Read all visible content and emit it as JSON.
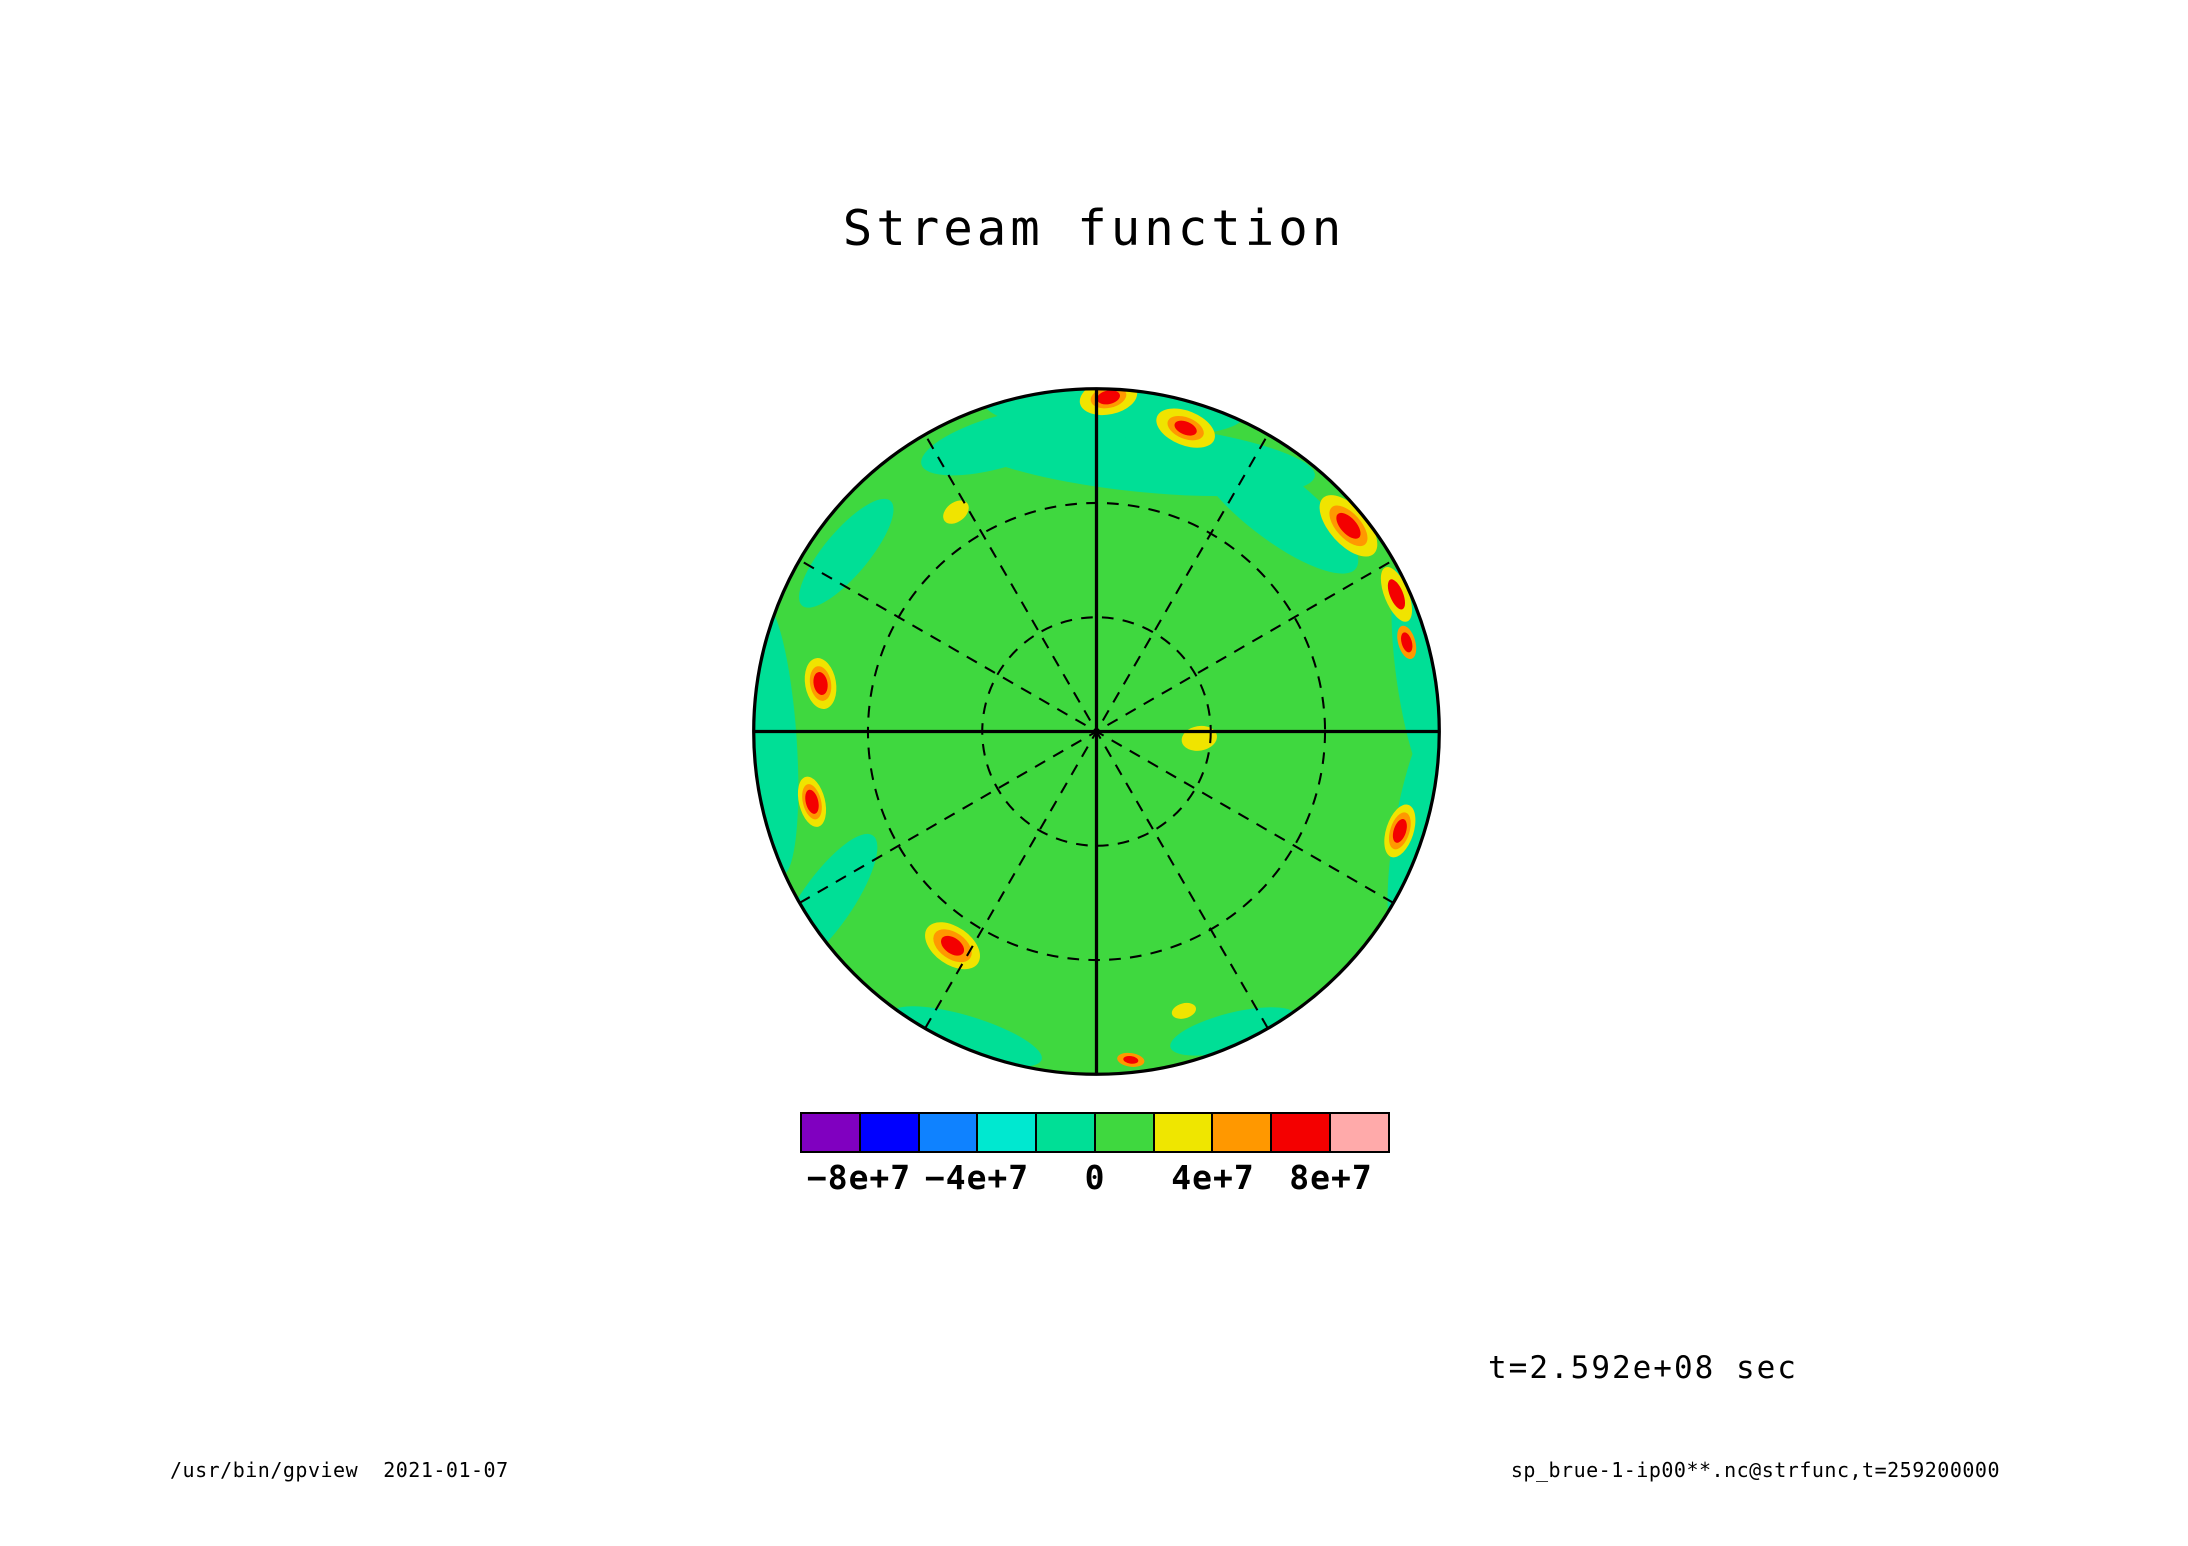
{
  "title": "Stream function",
  "time_label": "t=2.592e+08 sec",
  "footer": {
    "left": "/usr/bin/gpview  2021-01-07",
    "right": "sp_brue-1-ip00**.nc@strfunc,t=259200000"
  },
  "chart_data": {
    "type": "heatmap",
    "projection": "polar-azimuthal",
    "title": "Stream function",
    "variable": "strfunc",
    "time_seconds": "2.592e+08",
    "levels": [
      -100000000,
      -80000000,
      -60000000,
      -40000000,
      -20000000,
      0,
      20000000,
      40000000,
      60000000,
      80000000,
      100000000
    ],
    "colorbar": {
      "colors": [
        "#8000c0",
        "#0000ff",
        "#0f82ff",
        "#00e8d0",
        "#00df96",
        "#3fd83f",
        "#efe600",
        "#ff9800",
        "#f40000",
        "#ffaaaa"
      ],
      "ticks": [
        {
          "label": "−8e+7",
          "pos": 0.1
        },
        {
          "label": "−4e+7",
          "pos": 0.3
        },
        {
          "label": "0",
          "pos": 0.5
        },
        {
          "label": "4e+7",
          "pos": 0.7
        },
        {
          "label": "8e+7",
          "pos": 0.9
        }
      ]
    },
    "palette": {
      "background": "#3fd83f",
      "negative_band": "#00df96",
      "yellow": "#f0e400",
      "orange": "#ff9800",
      "red": "#f40000",
      "line": "#000000"
    },
    "grid": {
      "circles": [
        0.3333,
        0.6667
      ],
      "dashed_spokes_deg": [
        30,
        60,
        120,
        150
      ],
      "solid_spokes_deg": [
        0,
        90
      ],
      "dash": "0.034 0.027",
      "dashed_width": 0.006,
      "solid_width": 0.0095
    },
    "field_patches": [
      {
        "x": 0.12,
        "y": -0.8,
        "rx": 0.52,
        "ry": 0.1,
        "rot": 6
      },
      {
        "x": 0.52,
        "y": -0.66,
        "rx": 0.3,
        "ry": 0.095,
        "rot": 38
      },
      {
        "x": -0.28,
        "y": -0.845,
        "rx": 0.24,
        "ry": 0.075,
        "rot": -16
      },
      {
        "x": 0.05,
        "y": -0.94,
        "rx": 0.38,
        "ry": 0.08,
        "rot": 3
      },
      {
        "x": 0.95,
        "y": -0.16,
        "rx": 0.075,
        "ry": 0.36,
        "rot": -8
      },
      {
        "x": 0.94,
        "y": 0.28,
        "rx": 0.07,
        "ry": 0.34,
        "rot": 10
      },
      {
        "x": -0.945,
        "y": 0.02,
        "rx": 0.07,
        "ry": 0.4,
        "rot": -4
      },
      {
        "x": -0.79,
        "y": 0.5,
        "rx": 0.075,
        "ry": 0.24,
        "rot": 35
      },
      {
        "x": -0.73,
        "y": -0.52,
        "rx": 0.2,
        "ry": 0.065,
        "rot": -50
      },
      {
        "x": -0.38,
        "y": 0.89,
        "rx": 0.23,
        "ry": 0.06,
        "rot": 17
      },
      {
        "x": 0.4,
        "y": 0.875,
        "rx": 0.19,
        "ry": 0.055,
        "rot": -14
      }
    ],
    "anomaly_spots": [
      {
        "x": 0.035,
        "y": -0.975,
        "rx": 0.085,
        "ry": 0.05,
        "rot": -12,
        "rings": [
          {
            "color": "#f0e400",
            "scale": 1
          },
          {
            "color": "#ff9800",
            "scale": 0.62
          },
          {
            "color": "#f40000",
            "scale": 0.4
          }
        ]
      },
      {
        "x": 0.26,
        "y": -0.885,
        "rx": 0.09,
        "ry": 0.05,
        "rot": 22,
        "rings": [
          {
            "color": "#f0e400",
            "scale": 1
          },
          {
            "color": "#ff9800",
            "scale": 0.62
          },
          {
            "color": "#f40000",
            "scale": 0.38
          }
        ]
      },
      {
        "x": 0.735,
        "y": -0.6,
        "rx": 0.11,
        "ry": 0.055,
        "rot": 48,
        "rings": [
          {
            "color": "#f0e400",
            "scale": 1
          },
          {
            "color": "#ff9800",
            "scale": 0.66
          },
          {
            "color": "#f40000",
            "scale": 0.42
          }
        ]
      },
      {
        "x": 0.875,
        "y": -0.4,
        "rx": 0.085,
        "ry": 0.035,
        "rot": 68,
        "rings": [
          {
            "color": "#f0e400",
            "scale": 1
          },
          {
            "color": "#f40000",
            "scale": 0.55
          }
        ]
      },
      {
        "x": 0.905,
        "y": -0.26,
        "rx": 0.05,
        "ry": 0.025,
        "rot": 74,
        "rings": [
          {
            "color": "#ff9800",
            "scale": 1
          },
          {
            "color": "#f40000",
            "scale": 0.6
          }
        ]
      },
      {
        "x": 0.885,
        "y": 0.29,
        "rx": 0.08,
        "ry": 0.04,
        "rot": 108,
        "rings": [
          {
            "color": "#f0e400",
            "scale": 1
          },
          {
            "color": "#ff9800",
            "scale": 0.7
          },
          {
            "color": "#f40000",
            "scale": 0.45
          }
        ]
      },
      {
        "x": -0.805,
        "y": -0.14,
        "rx": 0.075,
        "ry": 0.045,
        "rot": 80,
        "rings": [
          {
            "color": "#f0e400",
            "scale": 1
          },
          {
            "color": "#ff9800",
            "scale": 0.68
          },
          {
            "color": "#f40000",
            "scale": 0.45
          }
        ]
      },
      {
        "x": -0.83,
        "y": 0.205,
        "rx": 0.075,
        "ry": 0.038,
        "rot": 76,
        "rings": [
          {
            "color": "#f0e400",
            "scale": 1
          },
          {
            "color": "#ff9800",
            "scale": 0.7
          },
          {
            "color": "#f40000",
            "scale": 0.48
          }
        ]
      },
      {
        "x": -0.42,
        "y": 0.625,
        "rx": 0.09,
        "ry": 0.055,
        "rot": 35,
        "rings": [
          {
            "color": "#f0e400",
            "scale": 1
          },
          {
            "color": "#ff9800",
            "scale": 0.7
          },
          {
            "color": "#f40000",
            "scale": 0.42
          }
        ]
      },
      {
        "x": 0.3,
        "y": 0.02,
        "rx": 0.052,
        "ry": 0.036,
        "rot": -10,
        "rings": [
          {
            "color": "#f0e400",
            "scale": 1
          }
        ]
      },
      {
        "x": -0.41,
        "y": -0.64,
        "rx": 0.042,
        "ry": 0.028,
        "rot": -38,
        "rings": [
          {
            "color": "#f0e400",
            "scale": 1
          }
        ]
      },
      {
        "x": 0.255,
        "y": 0.815,
        "rx": 0.036,
        "ry": 0.022,
        "rot": -15,
        "rings": [
          {
            "color": "#f0e400",
            "scale": 1
          }
        ]
      },
      {
        "x": 0.1,
        "y": 0.958,
        "rx": 0.04,
        "ry": 0.02,
        "rot": 8,
        "rings": [
          {
            "color": "#ff9800",
            "scale": 1
          },
          {
            "color": "#f40000",
            "scale": 0.55
          }
        ]
      }
    ]
  }
}
